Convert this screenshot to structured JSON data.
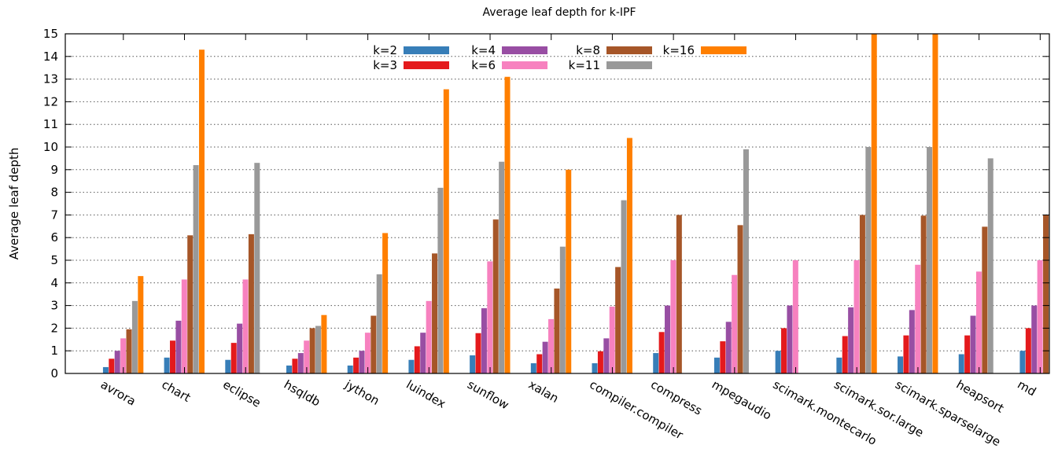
{
  "chart_data": {
    "type": "bar",
    "title": "Average leaf depth for k-IPF",
    "xlabel": "",
    "ylabel": "Average leaf depth",
    "ylim": [
      0,
      15
    ],
    "yticks": [
      "0",
      "1",
      "2",
      "3",
      "4",
      "5",
      "6",
      "7",
      "8",
      "9",
      "10",
      "11",
      "12",
      "13",
      "14",
      "15"
    ],
    "grid": true,
    "legend_position": "top-center",
    "categories": [
      "avrora",
      "chart",
      "eclipse",
      "hsqldb",
      "jython",
      "luindex",
      "sunflow",
      "xalan",
      "compiler.compiler",
      "compress",
      "mpegaudio",
      "scimark.montecarlo",
      "scimark.sor.large",
      "scimark.sparselarge",
      "heapsort",
      "md"
    ],
    "series": [
      {
        "name": "k=2",
        "color": "#377eb8",
        "values": [
          0.28,
          0.7,
          0.6,
          0.35,
          0.35,
          0.6,
          0.8,
          0.45,
          0.45,
          0.9,
          0.7,
          1.0,
          0.7,
          0.75,
          0.85,
          1.0
        ]
      },
      {
        "name": "k=3",
        "color": "#e41a1c",
        "values": [
          0.65,
          1.45,
          1.35,
          0.65,
          0.7,
          1.2,
          1.78,
          0.85,
          0.98,
          1.83,
          1.42,
          2.0,
          1.65,
          1.68,
          1.68,
          2.0
        ]
      },
      {
        "name": "k=4",
        "color": "#984ea3",
        "values": [
          1.0,
          2.33,
          2.2,
          0.9,
          1.0,
          1.8,
          2.88,
          1.4,
          1.55,
          3.0,
          2.28,
          3.0,
          2.92,
          2.8,
          2.55,
          3.0
        ]
      },
      {
        "name": "k=6",
        "color": "#f781bf",
        "values": [
          1.55,
          4.15,
          4.15,
          1.45,
          1.8,
          3.2,
          4.95,
          2.4,
          2.95,
          5.0,
          4.35,
          5.0,
          5.0,
          4.8,
          4.5,
          5.0
        ]
      },
      {
        "name": "k=8",
        "color": "#a65628",
        "values": [
          1.95,
          6.1,
          6.15,
          2.0,
          2.55,
          5.3,
          6.8,
          3.75,
          4.7,
          7.0,
          6.55,
          null,
          7.0,
          6.97,
          6.48,
          7.0
        ]
      },
      {
        "name": "k=11",
        "color": "#999999",
        "values": [
          3.2,
          9.2,
          9.3,
          2.1,
          4.38,
          8.2,
          9.35,
          5.6,
          7.65,
          null,
          9.9,
          null,
          10.0,
          10.0,
          9.5,
          null
        ]
      },
      {
        "name": "k=16",
        "color": "#ff7f00",
        "values": [
          4.3,
          14.3,
          null,
          2.58,
          6.2,
          12.55,
          13.1,
          9.0,
          10.4,
          null,
          null,
          null,
          15.0,
          15.0,
          null,
          null
        ]
      }
    ]
  }
}
